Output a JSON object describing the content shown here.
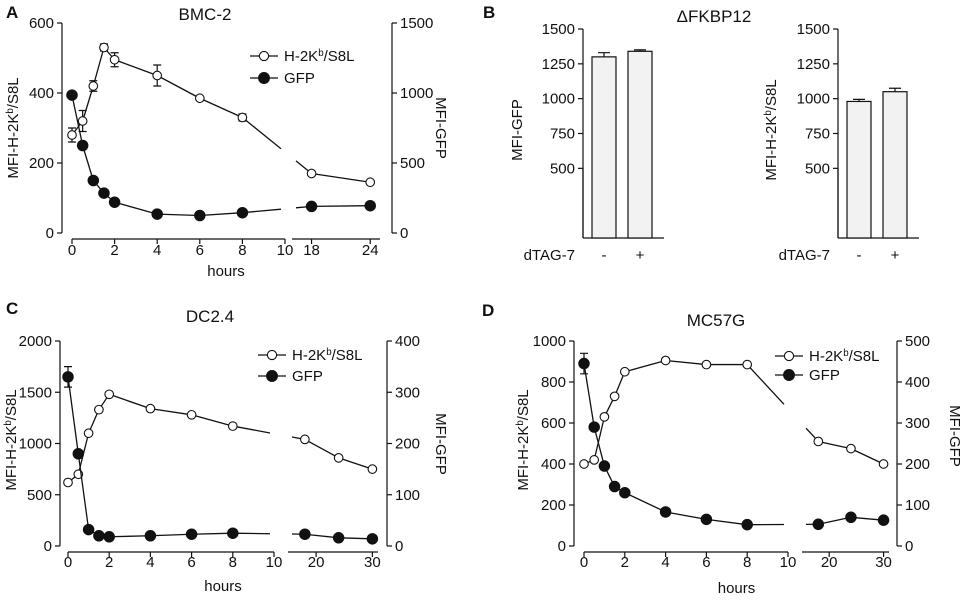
{
  "chart_data": [
    {
      "panel_letter": "A",
      "type": "line",
      "title": "BMC-2",
      "xlabel": "hours",
      "ylabel_left": "MFI-H-2K",
      "ylabel_left_sup": "b",
      "ylabel_left_tail": "/S8L",
      "ylabel_right": "MFI-GFP",
      "left_ylim": [
        0,
        600
      ],
      "left_yticks": [
        "0",
        "200",
        "400",
        "600"
      ],
      "right_ylim": [
        0,
        1500
      ],
      "right_yticks": [
        "0",
        "500",
        "1000",
        "1500"
      ],
      "x_segments": [
        {
          "range": [
            0,
            10
          ],
          "ticks": [
            "0",
            "2",
            "4",
            "6",
            "8",
            "10"
          ]
        },
        {
          "range": [
            16,
            25
          ],
          "ticks": [
            "18",
            "24"
          ]
        }
      ],
      "legend": [
        {
          "label": "H-2K",
          "sup": "b",
          "tail": "/S8L",
          "marker": "open"
        },
        {
          "label": "GFP",
          "sup": "",
          "tail": "",
          "marker": "filled"
        }
      ],
      "series": [
        {
          "name": "H-2Kb/S8L",
          "axis": "left",
          "marker": "open",
          "x": [
            0,
            0.5,
            1,
            1.5,
            2,
            4,
            6,
            8,
            18,
            24
          ],
          "y": [
            280,
            320,
            420,
            530,
            495,
            450,
            385,
            330,
            170,
            145
          ],
          "err": [
            20,
            30,
            15,
            10,
            20,
            30,
            0,
            10,
            0,
            0
          ]
        },
        {
          "name": "GFP",
          "axis": "right",
          "marker": "filled",
          "x": [
            0,
            0.5,
            1,
            1.5,
            2,
            4,
            6,
            8,
            18,
            24
          ],
          "y": [
            985,
            625,
            375,
            285,
            220,
            135,
            125,
            145,
            190,
            195
          ],
          "err": [
            0,
            0,
            0,
            0,
            0,
            0,
            0,
            0,
            0,
            0
          ]
        }
      ]
    },
    {
      "panel_letter": "B",
      "type": "bar",
      "title": "ΔFKBP12",
      "xlabel": "dTAG-7",
      "categories": [
        "-",
        "+"
      ],
      "subplots": [
        {
          "ylabel": "MFI-GFP",
          "ylabel_sup": "",
          "ylabel_tail": "",
          "ylim": [
            0,
            1500
          ],
          "yticks": [
            "500",
            "750",
            "1000",
            "1250",
            "1500"
          ],
          "values": [
            1300,
            1340
          ],
          "err": [
            30,
            10
          ]
        },
        {
          "ylabel": "MFI-H-2K",
          "ylabel_sup": "b",
          "ylabel_tail": "/S8L",
          "ylim": [
            0,
            1500
          ],
          "yticks": [
            "500",
            "750",
            "1000",
            "1250",
            "1500"
          ],
          "values": [
            980,
            1050
          ],
          "err": [
            15,
            25
          ]
        }
      ]
    },
    {
      "panel_letter": "C",
      "type": "line",
      "title": "DC2.4",
      "xlabel": "hours",
      "ylabel_left": "MFI-H-2K",
      "ylabel_left_sup": "b",
      "ylabel_left_tail": "/S8L",
      "ylabel_right": "MFI-GFP",
      "left_ylim": [
        0,
        2000
      ],
      "left_yticks": [
        "0",
        "500",
        "1000",
        "1500",
        "2000"
      ],
      "right_ylim": [
        0,
        400
      ],
      "right_yticks": [
        "0",
        "100",
        "200",
        "300",
        "400"
      ],
      "x_segments": [
        {
          "range": [
            0,
            10
          ],
          "ticks": [
            "0",
            "2",
            "4",
            "6",
            "8",
            "10"
          ]
        },
        {
          "range": [
            15,
            31
          ],
          "ticks": [
            "20",
            "30"
          ]
        }
      ],
      "legend": [
        {
          "label": "H-2K",
          "sup": "b",
          "tail": "/S8L",
          "marker": "open"
        },
        {
          "label": "GFP",
          "sup": "",
          "tail": "",
          "marker": "filled"
        }
      ],
      "series": [
        {
          "name": "H-2Kb/S8L",
          "axis": "left",
          "marker": "open",
          "x": [
            0,
            0.5,
            1,
            1.5,
            2,
            4,
            6,
            8,
            18,
            24,
            30
          ],
          "y": [
            620,
            700,
            1100,
            1330,
            1480,
            1340,
            1280,
            1170,
            1040,
            860,
            750
          ],
          "err": [
            0,
            0,
            0,
            0,
            0,
            0,
            0,
            0,
            0,
            0,
            0
          ]
        },
        {
          "name": "GFP",
          "axis": "right",
          "marker": "filled",
          "x": [
            0,
            0.5,
            1,
            1.5,
            2,
            4,
            6,
            8,
            18,
            24,
            30
          ],
          "y": [
            330,
            180,
            32,
            20,
            18,
            20,
            23,
            25,
            23,
            16,
            14
          ],
          "err": [
            20,
            0,
            0,
            0,
            0,
            0,
            0,
            0,
            0,
            0,
            0
          ]
        }
      ]
    },
    {
      "panel_letter": "D",
      "type": "line",
      "title": "MC57G",
      "xlabel": "hours",
      "ylabel_left": "MFI-H-2K",
      "ylabel_left_sup": "b",
      "ylabel_left_tail": "/S8L",
      "ylabel_right": "MFI-GFP",
      "left_ylim": [
        0,
        1000
      ],
      "left_yticks": [
        "0",
        "200",
        "400",
        "600",
        "800",
        "1000"
      ],
      "right_ylim": [
        0,
        500
      ],
      "right_yticks": [
        "0",
        "100",
        "200",
        "300",
        "400",
        "500"
      ],
      "x_segments": [
        {
          "range": [
            0,
            10
          ],
          "ticks": [
            "0",
            "2",
            "4",
            "6",
            "8",
            "10"
          ]
        },
        {
          "range": [
            15,
            31
          ],
          "ticks": [
            "20",
            "30"
          ]
        }
      ],
      "legend": [
        {
          "label": "H-2K",
          "sup": "b",
          "tail": "/S8L",
          "marker": "open"
        },
        {
          "label": "GFP",
          "sup": "",
          "tail": "",
          "marker": "filled"
        }
      ],
      "series": [
        {
          "name": "H-2Kb/S8L",
          "axis": "left",
          "marker": "open",
          "x": [
            0,
            0.5,
            1,
            1.5,
            2,
            4,
            6,
            8,
            18,
            24,
            30
          ],
          "y": [
            400,
            420,
            630,
            730,
            850,
            905,
            885,
            885,
            510,
            475,
            400
          ],
          "err": [
            0,
            0,
            0,
            0,
            0,
            0,
            0,
            0,
            0,
            0,
            0
          ]
        },
        {
          "name": "GFP",
          "axis": "right",
          "marker": "filled",
          "x": [
            0,
            0.5,
            1,
            1.5,
            2,
            4,
            6,
            8,
            18,
            24,
            30
          ],
          "y": [
            445,
            290,
            195,
            145,
            130,
            83,
            65,
            52,
            53,
            70,
            63
          ],
          "err": [
            25,
            0,
            0,
            0,
            0,
            0,
            0,
            0,
            0,
            0,
            0
          ]
        }
      ]
    }
  ]
}
